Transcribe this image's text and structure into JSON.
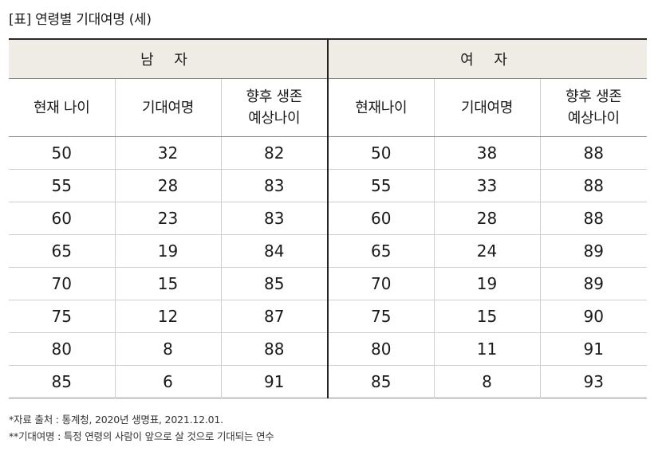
{
  "title": "[표] 연령별 기대여명 (세)",
  "groups": {
    "male": "남 자",
    "female": "여 자"
  },
  "columns": {
    "male": [
      "현재 나이",
      "기대여명",
      "향후 생존\n예상나이"
    ],
    "female": [
      "현재나이",
      "기대여명",
      "향후 생존\n예상나이"
    ]
  },
  "rows": [
    [
      "50",
      "32",
      "82",
      "50",
      "38",
      "88"
    ],
    [
      "55",
      "28",
      "83",
      "55",
      "33",
      "88"
    ],
    [
      "60",
      "23",
      "83",
      "60",
      "28",
      "88"
    ],
    [
      "65",
      "19",
      "84",
      "65",
      "24",
      "89"
    ],
    [
      "70",
      "15",
      "85",
      "70",
      "19",
      "89"
    ],
    [
      "75",
      "12",
      "87",
      "75",
      "15",
      "90"
    ],
    [
      "80",
      "8",
      "88",
      "80",
      "11",
      "91"
    ],
    [
      "85",
      "6",
      "91",
      "85",
      "8",
      "93"
    ]
  ],
  "notes": [
    "*자료 출처 : 통계청, 2020년 생명표, 2021.12.01.",
    "**기대여명 : 특정 연령의 사람이 앞으로 살 것으로 기대되는 연수"
  ]
}
